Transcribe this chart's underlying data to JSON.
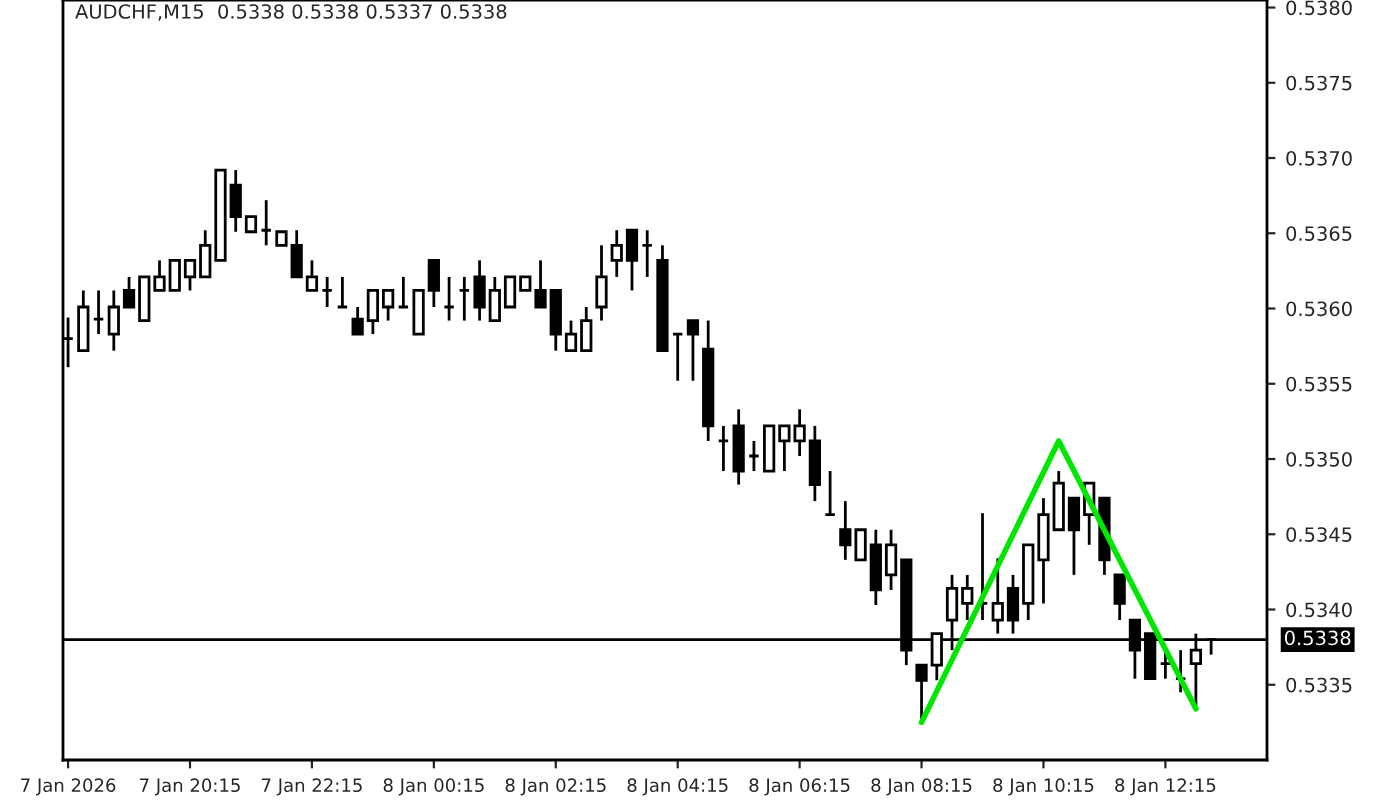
{
  "chart_data": {
    "type": "candlestick",
    "title": "AUDCHF,M15  0.5338 0.5338 0.5337 0.5338",
    "x": [
      "2026-01-07T18:15",
      "2026-01-07T18:30",
      "2026-01-07T18:45",
      "2026-01-07T19:00",
      "2026-01-07T19:15",
      "2026-01-07T19:30",
      "2026-01-07T19:45",
      "2026-01-07T20:00",
      "2026-01-07T20:15",
      "2026-01-07T20:30",
      "2026-01-07T20:45",
      "2026-01-07T21:00",
      "2026-01-07T21:15",
      "2026-01-07T21:30",
      "2026-01-07T21:45",
      "2026-01-07T22:00",
      "2026-01-07T22:15",
      "2026-01-07T22:30",
      "2026-01-07T22:45",
      "2026-01-07T23:00",
      "2026-01-07T23:15",
      "2026-01-07T23:30",
      "2026-01-07T23:45",
      "2026-01-08T00:00",
      "2026-01-08T00:15",
      "2026-01-08T00:30",
      "2026-01-08T00:45",
      "2026-01-08T01:00",
      "2026-01-08T01:15",
      "2026-01-08T01:30",
      "2026-01-08T01:45",
      "2026-01-08T02:00",
      "2026-01-08T02:15",
      "2026-01-08T02:30",
      "2026-01-08T02:45",
      "2026-01-08T03:00",
      "2026-01-08T03:15",
      "2026-01-08T03:30",
      "2026-01-08T03:45",
      "2026-01-08T04:00",
      "2026-01-08T04:15",
      "2026-01-08T04:30",
      "2026-01-08T04:45",
      "2026-01-08T05:00",
      "2026-01-08T05:15",
      "2026-01-08T05:30",
      "2026-01-08T05:45",
      "2026-01-08T06:00",
      "2026-01-08T06:15",
      "2026-01-08T06:30",
      "2026-01-08T06:45",
      "2026-01-08T07:00",
      "2026-01-08T07:15",
      "2026-01-08T07:30",
      "2026-01-08T07:45",
      "2026-01-08T08:00",
      "2026-01-08T08:15",
      "2026-01-08T08:30",
      "2026-01-08T08:45",
      "2026-01-08T09:00",
      "2026-01-08T09:15",
      "2026-01-08T09:30",
      "2026-01-08T09:45",
      "2026-01-08T10:00",
      "2026-01-08T10:15",
      "2026-01-08T10:30",
      "2026-01-08T10:45",
      "2026-01-08T11:00",
      "2026-01-08T11:15",
      "2026-01-08T11:30",
      "2026-01-08T11:45",
      "2026-01-08T12:00",
      "2026-01-08T12:15",
      "2026-01-08T12:30",
      "2026-01-08T12:45",
      "2026-01-08T13:00"
    ],
    "ohlc": [
      [
        0.5358,
        0.53594,
        0.53561,
        0.5358
      ],
      [
        0.53572,
        0.53612,
        0.53572,
        0.53601
      ],
      [
        0.53593,
        0.53612,
        0.53583,
        0.53593
      ],
      [
        0.53583,
        0.53612,
        0.53572,
        0.53601
      ],
      [
        0.53612,
        0.53621,
        0.53601,
        0.53601
      ],
      [
        0.53592,
        0.53621,
        0.53592,
        0.53621
      ],
      [
        0.53612,
        0.53632,
        0.53612,
        0.53621
      ],
      [
        0.53612,
        0.53632,
        0.53612,
        0.53632
      ],
      [
        0.53621,
        0.53632,
        0.53612,
        0.53632
      ],
      [
        0.53621,
        0.53652,
        0.53621,
        0.53642
      ],
      [
        0.53632,
        0.53692,
        0.53632,
        0.53692
      ],
      [
        0.53682,
        0.53692,
        0.53651,
        0.53661
      ],
      [
        0.53651,
        0.53661,
        0.53651,
        0.53661
      ],
      [
        0.53652,
        0.53672,
        0.53642,
        0.53652
      ],
      [
        0.53642,
        0.53651,
        0.53642,
        0.53651
      ],
      [
        0.53642,
        0.53652,
        0.53621,
        0.53621
      ],
      [
        0.53612,
        0.53632,
        0.53612,
        0.53621
      ],
      [
        0.53612,
        0.53621,
        0.53601,
        0.53612
      ],
      [
        0.53601,
        0.53621,
        0.53601,
        0.53601
      ],
      [
        0.53593,
        0.53601,
        0.53583,
        0.53583
      ],
      [
        0.53592,
        0.53612,
        0.53583,
        0.53612
      ],
      [
        0.53601,
        0.53612,
        0.53592,
        0.53612
      ],
      [
        0.53601,
        0.53621,
        0.53601,
        0.53601
      ],
      [
        0.53583,
        0.53612,
        0.53583,
        0.53612
      ],
      [
        0.53632,
        0.53632,
        0.53601,
        0.53612
      ],
      [
        0.53601,
        0.53621,
        0.53592,
        0.53601
      ],
      [
        0.53612,
        0.53621,
        0.53592,
        0.53612
      ],
      [
        0.53621,
        0.53632,
        0.53592,
        0.53601
      ],
      [
        0.53592,
        0.53621,
        0.53592,
        0.53612
      ],
      [
        0.53601,
        0.53621,
        0.53601,
        0.53621
      ],
      [
        0.53612,
        0.53621,
        0.53612,
        0.53621
      ],
      [
        0.53612,
        0.53632,
        0.53601,
        0.53601
      ],
      [
        0.53612,
        0.53612,
        0.53572,
        0.53583
      ],
      [
        0.53572,
        0.53592,
        0.53572,
        0.53583
      ],
      [
        0.53572,
        0.53601,
        0.53572,
        0.53592
      ],
      [
        0.53601,
        0.53642,
        0.53592,
        0.53621
      ],
      [
        0.53632,
        0.53652,
        0.53621,
        0.53642
      ],
      [
        0.53652,
        0.53652,
        0.53612,
        0.53632
      ],
      [
        0.53642,
        0.53652,
        0.53621,
        0.53642
      ],
      [
        0.53632,
        0.53642,
        0.53572,
        0.53572
      ],
      [
        0.53583,
        0.53583,
        0.53552,
        0.53583
      ],
      [
        0.53592,
        0.53592,
        0.53552,
        0.53583
      ],
      [
        0.53573,
        0.53592,
        0.53512,
        0.53522
      ],
      [
        0.53512,
        0.53522,
        0.53492,
        0.53512
      ],
      [
        0.53522,
        0.53533,
        0.53483,
        0.53492
      ],
      [
        0.53502,
        0.53512,
        0.53492,
        0.53502
      ],
      [
        0.53492,
        0.53522,
        0.53492,
        0.53522
      ],
      [
        0.53512,
        0.53522,
        0.53492,
        0.53522
      ],
      [
        0.53512,
        0.53533,
        0.53502,
        0.53522
      ],
      [
        0.53512,
        0.53522,
        0.53472,
        0.53483
      ],
      [
        0.53463,
        0.53492,
        0.53463,
        0.53463
      ],
      [
        0.53453,
        0.53472,
        0.53433,
        0.53443
      ],
      [
        0.53433,
        0.53453,
        0.53433,
        0.53453
      ],
      [
        0.53443,
        0.53453,
        0.53403,
        0.53413
      ],
      [
        0.53423,
        0.53453,
        0.53413,
        0.53443
      ],
      [
        0.53433,
        0.53433,
        0.53363,
        0.53373
      ],
      [
        0.53363,
        0.53363,
        0.53325,
        0.53353
      ],
      [
        0.53363,
        0.53384,
        0.53353,
        0.53384
      ],
      [
        0.53393,
        0.53423,
        0.53373,
        0.53414
      ],
      [
        0.53404,
        0.53423,
        0.53393,
        0.53414
      ],
      [
        0.53404,
        0.53464,
        0.53393,
        0.53404
      ],
      [
        0.53393,
        0.53434,
        0.53384,
        0.53404
      ],
      [
        0.53414,
        0.53423,
        0.53384,
        0.53393
      ],
      [
        0.53404,
        0.53443,
        0.53393,
        0.53443
      ],
      [
        0.53433,
        0.53474,
        0.53404,
        0.53463
      ],
      [
        0.53453,
        0.53492,
        0.53453,
        0.53484
      ],
      [
        0.53474,
        0.53474,
        0.53423,
        0.53453
      ],
      [
        0.53463,
        0.53484,
        0.53443,
        0.53484
      ],
      [
        0.53474,
        0.53474,
        0.53423,
        0.53433
      ],
      [
        0.53423,
        0.53423,
        0.53393,
        0.53404
      ],
      [
        0.53393,
        0.53393,
        0.53354,
        0.53373
      ],
      [
        0.53384,
        0.53384,
        0.53354,
        0.53354
      ],
      [
        0.53364,
        0.53373,
        0.53354,
        0.53364
      ],
      [
        0.53354,
        0.53373,
        0.53345,
        0.53354
      ],
      [
        0.53364,
        0.53384,
        0.53334,
        0.53373
      ],
      [
        0.5338,
        0.5338,
        0.5337,
        0.5338
      ]
    ],
    "series": [
      {
        "type": "line",
        "color": "#00e600",
        "x": [
          "2026-01-08T08:15",
          "2026-01-08T10:30",
          "2026-01-08T12:45"
        ],
        "values": [
          0.53325,
          0.53512,
          0.53334
        ]
      }
    ],
    "xlim": [
      "2026-01-07T18:10",
      "2026-01-08T13:55"
    ],
    "xticks": [
      {
        "value": "2026-01-07T18:15",
        "label": "7 Jan 2026"
      },
      {
        "value": "2026-01-07T20:15",
        "label": "7 Jan 20:15"
      },
      {
        "value": "2026-01-07T22:15",
        "label": "7 Jan 22:15"
      },
      {
        "value": "2026-01-08T00:15",
        "label": "8 Jan 00:15"
      },
      {
        "value": "2026-01-08T02:15",
        "label": "8 Jan 02:15"
      },
      {
        "value": "2026-01-08T04:15",
        "label": "8 Jan 04:15"
      },
      {
        "value": "2026-01-08T06:15",
        "label": "8 Jan 06:15"
      },
      {
        "value": "2026-01-08T08:15",
        "label": "8 Jan 08:15"
      },
      {
        "value": "2026-01-08T10:15",
        "label": "8 Jan 10:15"
      },
      {
        "value": "2026-01-08T12:15",
        "label": "8 Jan 12:15"
      }
    ],
    "ylim": [
      0.533,
      0.53805
    ],
    "yticks": [
      {
        "value": 0.538,
        "label": "0.5380"
      },
      0.5375,
      {
        "value": 0.537,
        "label": "0.5370"
      },
      0.5365,
      {
        "value": 0.536,
        "label": "0.5360"
      },
      0.5355,
      {
        "value": 0.535,
        "label": "0.5350"
      },
      0.5345,
      {
        "value": 0.534,
        "label": "0.5340"
      },
      0.5335
    ],
    "ref_lines": [
      {
        "axis": "y",
        "value": 0.5338,
        "label": "0.5338",
        "color": "#000000"
      }
    ],
    "grid": false,
    "legend": false
  }
}
